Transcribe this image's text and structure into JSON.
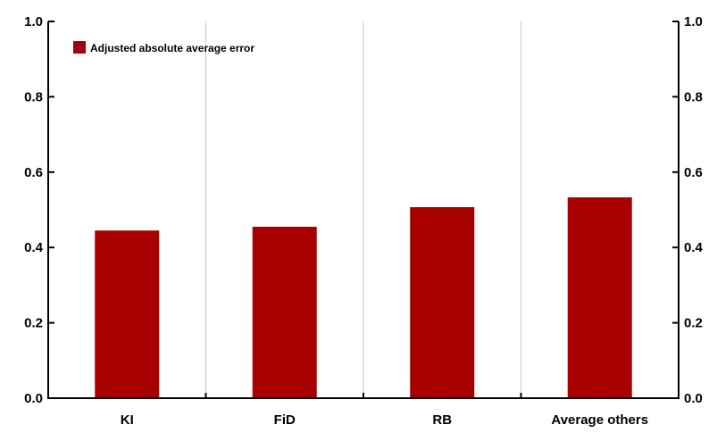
{
  "chart_data": {
    "type": "bar",
    "categories": [
      "KI",
      "FiD",
      "RB",
      "Average others"
    ],
    "series": [
      {
        "name": "Adjusted absolute average error",
        "values": [
          0.445,
          0.455,
          0.507,
          0.533
        ]
      }
    ],
    "title": "",
    "xlabel": "",
    "ylabel": "",
    "ylim": [
      0,
      1.0
    ],
    "yticks": [
      "0.0",
      "0.2",
      "0.4",
      "0.6",
      "0.8",
      "1.0"
    ],
    "grid": "vertical",
    "legend_position": "top-left",
    "colors": {
      "bar": "#A80000",
      "grid": "#C8C8C8",
      "axis": "#000000"
    }
  }
}
